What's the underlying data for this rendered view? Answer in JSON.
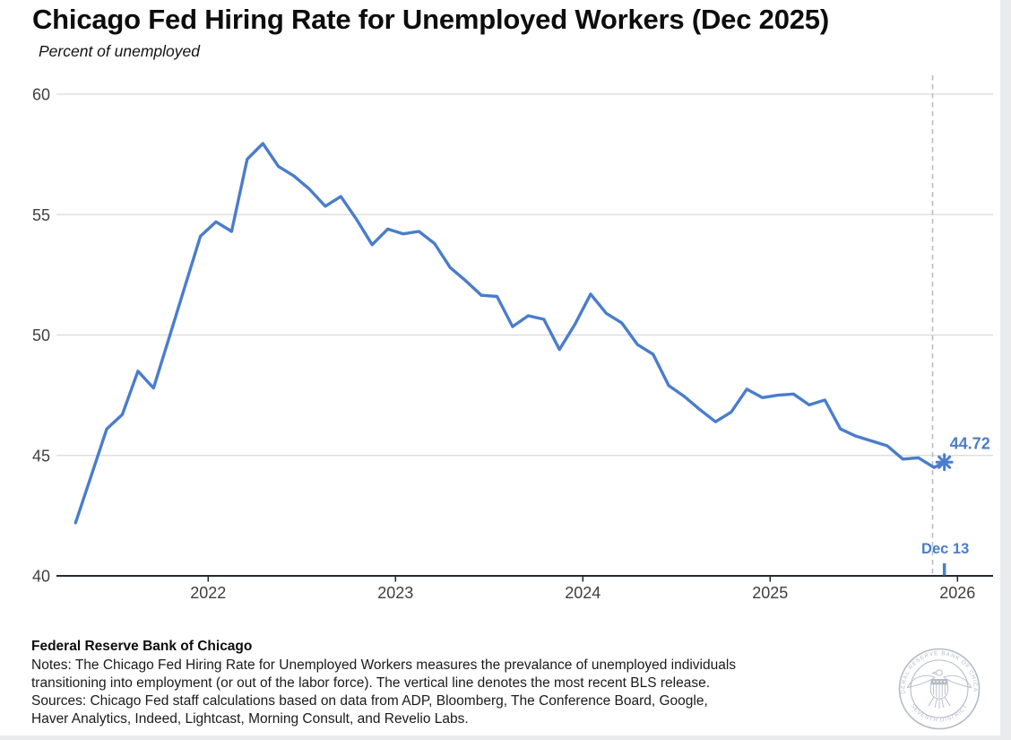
{
  "page": {
    "title": "Chicago Fed Hiring Rate for Unemployed Workers (Dec 2025)",
    "subtitle": "Percent of unemployed"
  },
  "chart_data": {
    "type": "line",
    "title": "Chicago Fed Hiring Rate for Unemployed Workers (Dec 2025)",
    "subtitle": "Percent of unemployed",
    "xlabel": "",
    "ylabel": "Percent of unemployed",
    "x_ticks": [
      2022,
      2023,
      2024,
      2025,
      2026
    ],
    "y_ticks": [
      40,
      45,
      50,
      55,
      60
    ],
    "x_range": [
      2021.19,
      2026.19
    ],
    "y_range": [
      40,
      60
    ],
    "grid": true,
    "legend": false,
    "line_color": "#4A7DCB",
    "colors": {
      "grid": "#d9d9d9",
      "axis": "#212b36",
      "tick_text": "#3f3f3f",
      "dashed_line": "#b7bcc2",
      "annotation": "#4A7DCB"
    },
    "bls_line_x": 2025.867,
    "annotation": {
      "value_label": "44.72",
      "date_label": "Dec 13",
      "x": 2025.93,
      "y": 44.72
    },
    "series": [
      {
        "name": "Hiring rate for unemployed workers",
        "points": [
          [
            2021.2917,
            42.2
          ],
          [
            2021.375,
            44.15
          ],
          [
            2021.4583,
            46.1
          ],
          [
            2021.5417,
            46.7
          ],
          [
            2021.625,
            48.5
          ],
          [
            2021.7083,
            47.8
          ],
          [
            2021.7917,
            49.9
          ],
          [
            2021.875,
            52.0
          ],
          [
            2021.9583,
            54.1
          ],
          [
            2022.0417,
            54.7
          ],
          [
            2022.125,
            54.3
          ],
          [
            2022.2083,
            57.3
          ],
          [
            2022.2917,
            57.95
          ],
          [
            2022.375,
            57.0
          ],
          [
            2022.4583,
            56.6
          ],
          [
            2022.5417,
            56.05
          ],
          [
            2022.625,
            55.35
          ],
          [
            2022.7083,
            55.75
          ],
          [
            2022.7917,
            54.8
          ],
          [
            2022.875,
            53.75
          ],
          [
            2022.9583,
            54.4
          ],
          [
            2023.0417,
            54.2
          ],
          [
            2023.125,
            54.3
          ],
          [
            2023.2083,
            53.8
          ],
          [
            2023.2917,
            52.8
          ],
          [
            2023.375,
            52.25
          ],
          [
            2023.4583,
            51.65
          ],
          [
            2023.5417,
            51.6
          ],
          [
            2023.625,
            50.35
          ],
          [
            2023.7083,
            50.8
          ],
          [
            2023.7917,
            50.65
          ],
          [
            2023.875,
            49.4
          ],
          [
            2023.9583,
            50.45
          ],
          [
            2024.0417,
            51.7
          ],
          [
            2024.125,
            50.9
          ],
          [
            2024.2083,
            50.5
          ],
          [
            2024.2917,
            49.6
          ],
          [
            2024.375,
            49.2
          ],
          [
            2024.4583,
            47.9
          ],
          [
            2024.5417,
            47.45
          ],
          [
            2024.625,
            46.9
          ],
          [
            2024.7083,
            46.4
          ],
          [
            2024.7917,
            46.8
          ],
          [
            2024.875,
            47.75
          ],
          [
            2024.9583,
            47.4
          ],
          [
            2025.0417,
            47.5
          ],
          [
            2025.125,
            47.55
          ],
          [
            2025.2083,
            47.1
          ],
          [
            2025.2917,
            47.3
          ],
          [
            2025.375,
            46.1
          ],
          [
            2025.4583,
            45.8
          ],
          [
            2025.5417,
            45.6
          ],
          [
            2025.625,
            45.4
          ],
          [
            2025.7083,
            44.85
          ],
          [
            2025.7917,
            44.9
          ],
          [
            2025.875,
            44.5
          ],
          [
            2025.93,
            44.72
          ]
        ]
      }
    ]
  },
  "footer": {
    "org": "Federal Reserve Bank of Chicago",
    "notes_lines": [
      "Notes: The Chicago Fed Hiring Rate for Unemployed Workers measures the prevalance of unemployed individuals",
      "transitioning into employment (or out of the labor force). The vertical line denotes the most recent BLS release."
    ],
    "sources_lines": [
      "Sources: Chicago Fed staff calculations based on data from ADP, Bloomberg, The Conference Board, Google,",
      "Haver Analytics, Indeed, Lightcast, Morning Consult, and Revelio Labs."
    ]
  },
  "seal": {
    "top_text": "FEDERAL RESERVE BANK OF CHICAGO",
    "bottom_text": "SEVENTH DISTRICT"
  }
}
